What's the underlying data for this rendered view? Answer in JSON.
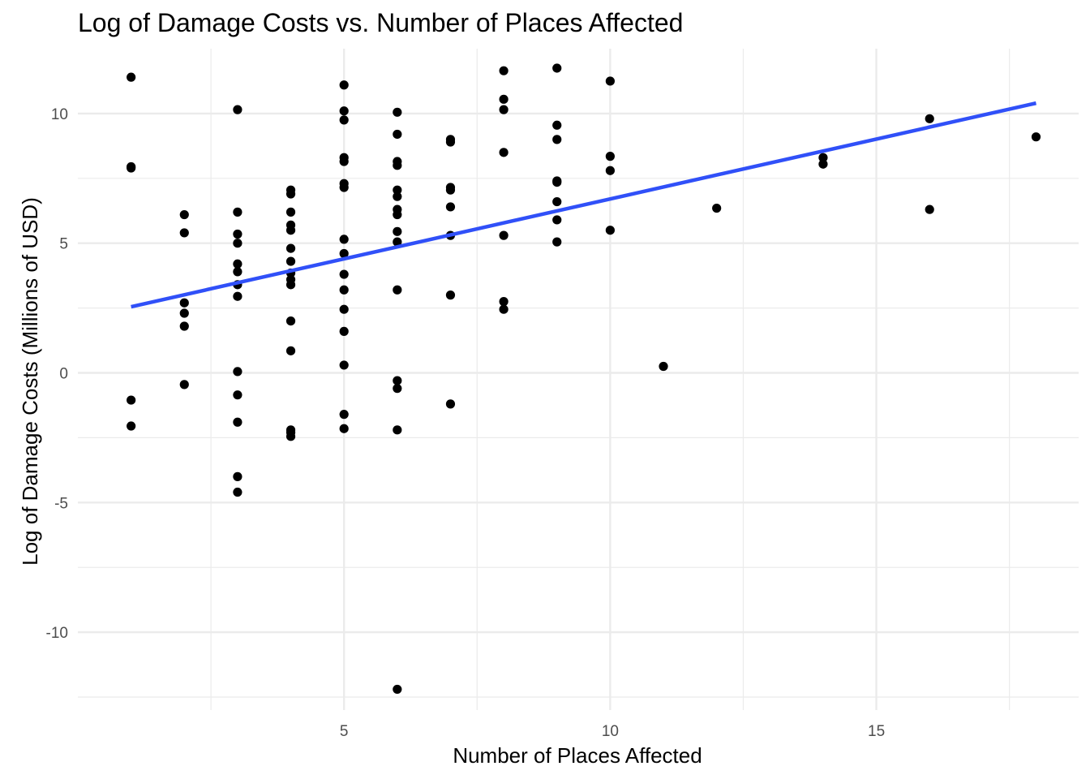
{
  "chart_data": {
    "type": "scatter",
    "title": "Log of Damage Costs vs. Number of Places Affected",
    "xlabel": "Number of Places Affected",
    "ylabel": "Log of Damage Costs (Millions of USD)",
    "xlim": [
      0.0,
      18.8
    ],
    "ylim": [
      -13.0,
      12.5
    ],
    "x_ticks": [
      5,
      10,
      15
    ],
    "x_tick_labels": [
      "5",
      "10",
      "15"
    ],
    "x_minor_ticks": [
      2.5,
      7.5,
      12.5,
      17.5
    ],
    "y_ticks": [
      -10,
      -5,
      0,
      5,
      10
    ],
    "y_tick_labels": [
      "-10",
      "-5",
      "0",
      "5",
      "10"
    ],
    "y_minor_ticks": [
      -12.5,
      -7.5,
      -2.5,
      2.5,
      7.5
    ],
    "grid": true,
    "legend": "none",
    "colors": {
      "points": "#000000",
      "trend": "#3050f8",
      "grid": "#ebebeb"
    },
    "points": [
      {
        "x": 1,
        "y": 11.4
      },
      {
        "x": 1,
        "y": 7.9
      },
      {
        "x": 1,
        "y": 7.95
      },
      {
        "x": 1,
        "y": -1.05
      },
      {
        "x": 1,
        "y": -2.05
      },
      {
        "x": 2,
        "y": 6.1
      },
      {
        "x": 2,
        "y": 5.4
      },
      {
        "x": 2,
        "y": 2.7
      },
      {
        "x": 2,
        "y": 2.3
      },
      {
        "x": 2,
        "y": 1.8
      },
      {
        "x": 2,
        "y": -0.45
      },
      {
        "x": 3,
        "y": 10.15
      },
      {
        "x": 3,
        "y": 6.2
      },
      {
        "x": 3,
        "y": 5.35
      },
      {
        "x": 3,
        "y": 5.0
      },
      {
        "x": 3,
        "y": 4.2
      },
      {
        "x": 3,
        "y": 3.9
      },
      {
        "x": 3,
        "y": 3.4
      },
      {
        "x": 3,
        "y": 2.95
      },
      {
        "x": 3,
        "y": 0.05
      },
      {
        "x": 3,
        "y": -0.85
      },
      {
        "x": 3,
        "y": -1.9
      },
      {
        "x": 3,
        "y": -4.0
      },
      {
        "x": 3,
        "y": -4.6
      },
      {
        "x": 4,
        "y": 7.05
      },
      {
        "x": 4,
        "y": 6.9
      },
      {
        "x": 4,
        "y": 6.2
      },
      {
        "x": 4,
        "y": 5.7
      },
      {
        "x": 4,
        "y": 5.5
      },
      {
        "x": 4,
        "y": 4.8
      },
      {
        "x": 4,
        "y": 4.3
      },
      {
        "x": 4,
        "y": 3.85
      },
      {
        "x": 4,
        "y": 3.6
      },
      {
        "x": 4,
        "y": 3.4
      },
      {
        "x": 4,
        "y": 2.0
      },
      {
        "x": 4,
        "y": 0.85
      },
      {
        "x": 4,
        "y": -2.2
      },
      {
        "x": 4,
        "y": -2.3
      },
      {
        "x": 4,
        "y": -2.45
      },
      {
        "x": 5,
        "y": 11.1
      },
      {
        "x": 5,
        "y": 10.1
      },
      {
        "x": 5,
        "y": 9.75
      },
      {
        "x": 5,
        "y": 8.3
      },
      {
        "x": 5,
        "y": 8.15
      },
      {
        "x": 5,
        "y": 7.3
      },
      {
        "x": 5,
        "y": 7.15
      },
      {
        "x": 5,
        "y": 5.15
      },
      {
        "x": 5,
        "y": 4.6
      },
      {
        "x": 5,
        "y": 3.8
      },
      {
        "x": 5,
        "y": 3.2
      },
      {
        "x": 5,
        "y": 2.45
      },
      {
        "x": 5,
        "y": 1.6
      },
      {
        "x": 5,
        "y": 0.3
      },
      {
        "x": 5,
        "y": -1.6
      },
      {
        "x": 5,
        "y": -2.15
      },
      {
        "x": 6,
        "y": 10.05
      },
      {
        "x": 6,
        "y": 9.2
      },
      {
        "x": 6,
        "y": 8.15
      },
      {
        "x": 6,
        "y": 8.0
      },
      {
        "x": 6,
        "y": 7.05
      },
      {
        "x": 6,
        "y": 6.8
      },
      {
        "x": 6,
        "y": 6.3
      },
      {
        "x": 6,
        "y": 6.1
      },
      {
        "x": 6,
        "y": 5.45
      },
      {
        "x": 6,
        "y": 5.05
      },
      {
        "x": 6,
        "y": 3.2
      },
      {
        "x": 6,
        "y": -0.3
      },
      {
        "x": 6,
        "y": -0.6
      },
      {
        "x": 6,
        "y": -2.2
      },
      {
        "x": 6,
        "y": -12.2
      },
      {
        "x": 7,
        "y": 9.0
      },
      {
        "x": 7,
        "y": 8.9
      },
      {
        "x": 7,
        "y": 7.15
      },
      {
        "x": 7,
        "y": 7.05
      },
      {
        "x": 7,
        "y": 6.4
      },
      {
        "x": 7,
        "y": 5.3
      },
      {
        "x": 7,
        "y": 3.0
      },
      {
        "x": 7,
        "y": -1.2
      },
      {
        "x": 8,
        "y": 11.65
      },
      {
        "x": 8,
        "y": 10.55
      },
      {
        "x": 8,
        "y": 10.15
      },
      {
        "x": 8,
        "y": 8.5
      },
      {
        "x": 8,
        "y": 5.3
      },
      {
        "x": 8,
        "y": 2.75
      },
      {
        "x": 8,
        "y": 2.45
      },
      {
        "x": 9,
        "y": 11.75
      },
      {
        "x": 9,
        "y": 9.55
      },
      {
        "x": 9,
        "y": 9.0
      },
      {
        "x": 9,
        "y": 7.4
      },
      {
        "x": 9,
        "y": 7.35
      },
      {
        "x": 9,
        "y": 6.6
      },
      {
        "x": 9,
        "y": 5.9
      },
      {
        "x": 9,
        "y": 5.05
      },
      {
        "x": 10,
        "y": 11.25
      },
      {
        "x": 10,
        "y": 8.35
      },
      {
        "x": 10,
        "y": 7.8
      },
      {
        "x": 10,
        "y": 5.5
      },
      {
        "x": 11,
        "y": 0.25
      },
      {
        "x": 12,
        "y": 6.35
      },
      {
        "x": 14,
        "y": 8.3
      },
      {
        "x": 14,
        "y": 8.05
      },
      {
        "x": 16,
        "y": 9.8
      },
      {
        "x": 16,
        "y": 6.3
      },
      {
        "x": 18,
        "y": 9.1
      }
    ],
    "trend_line": {
      "type": "linear",
      "x": [
        1,
        18
      ],
      "y": [
        2.55,
        10.4
      ]
    }
  }
}
